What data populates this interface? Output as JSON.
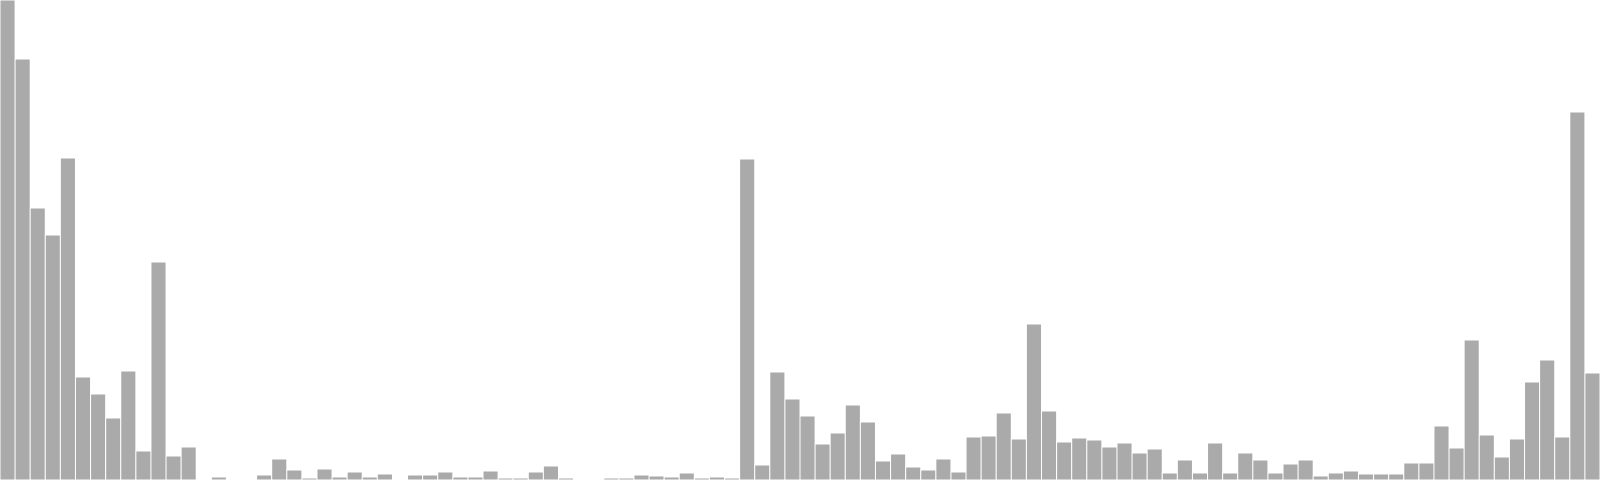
{
  "chart_data": {
    "type": "bar",
    "title": "",
    "xlabel": "",
    "ylabel": "",
    "ylim": [
      0,
      480
    ],
    "grid": false,
    "legend": "none",
    "bar_color": "#aaaaaa",
    "bar_border_color": "#ffffff",
    "values": [
      480,
      421,
      272,
      245,
      322,
      103,
      86,
      62,
      109,
      29,
      218,
      24,
      33,
      0,
      3,
      1,
      1,
      5,
      21,
      10,
      2,
      11,
      3,
      8,
      3,
      6,
      0,
      5,
      5,
      8,
      3,
      3,
      9,
      2,
      2,
      8,
      14,
      2,
      1,
      1,
      2,
      2,
      5,
      4,
      3,
      7,
      2,
      3,
      2,
      321,
      15,
      108,
      81,
      64,
      36,
      47,
      75,
      58,
      19,
      26,
      13,
      10,
      21,
      8,
      43,
      44,
      67,
      41,
      156,
      69,
      38,
      42,
      40,
      33,
      37,
      27,
      31,
      7,
      20,
      7,
      37,
      7,
      27,
      20,
      7,
      16,
      20,
      4,
      7,
      9,
      6,
      6,
      6,
      17,
      17,
      54,
      32,
      140,
      45,
      23,
      41,
      98,
      120,
      43,
      368,
      107
    ]
  }
}
